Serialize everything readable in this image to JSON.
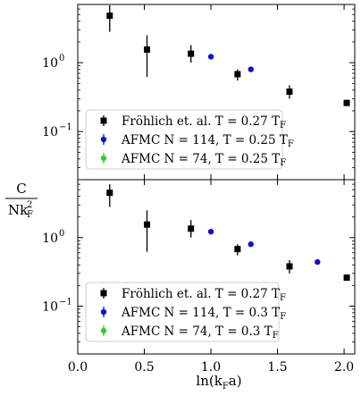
{
  "chart_data": [
    {
      "type": "scatter",
      "panel": "top",
      "yscale": "log",
      "xlim": [
        0.0,
        2.08
      ],
      "ylim": [
        0.02,
        7.0
      ],
      "yticks": [
        {
          "value": 0.1,
          "label": "10",
          "exp": "−1"
        },
        {
          "value": 1.0,
          "label": "10",
          "exp": "0"
        }
      ],
      "legend_loc": "lower-left",
      "series": [
        {
          "name": "Fröhlich et. al. T = 0.27 T_F",
          "legend": {
            "main": "Fröhlich et. al. T = 0.27 T",
            "sub": "F"
          },
          "color": "#000000",
          "marker": "square",
          "x": [
            0.24,
            0.52,
            0.85,
            1.2,
            1.59,
            2.02
          ],
          "y": [
            4.8,
            1.55,
            1.35,
            0.68,
            0.38,
            0.26
          ],
          "y_low": [
            2.8,
            0.62,
            1.0,
            0.55,
            0.3,
            0.24
          ],
          "y_high": [
            6.8,
            2.5,
            1.8,
            0.8,
            0.47,
            0.29
          ]
        },
        {
          "name": "AFMC N = 114, T = 0.25 T_F",
          "legend": {
            "main": "AFMC N = 114, T = 0.25 T",
            "sub": "F"
          },
          "color": "#1010d0",
          "marker": "circle",
          "x": [
            1.0,
            1.3
          ],
          "y": [
            1.22,
            0.8
          ],
          "y_low": [
            1.22,
            0.8
          ],
          "y_high": [
            1.22,
            0.8
          ]
        },
        {
          "name": "AFMC N = 74, T = 0.25 T_F",
          "legend": {
            "main": "AFMC N = 74, T = 0.25 T",
            "sub": "F"
          },
          "color": "#33cc33",
          "marker": "circle",
          "x": [],
          "y": [],
          "y_low": [],
          "y_high": []
        }
      ]
    },
    {
      "type": "scatter",
      "panel": "bottom",
      "yscale": "log",
      "xlim": [
        0.0,
        2.08
      ],
      "ylim": [
        0.02,
        7.0
      ],
      "xticks": [
        0.0,
        0.5,
        1.0,
        1.5,
        2.0
      ],
      "xtick_labels": [
        "0.0",
        "0.5",
        "1.0",
        "1.5",
        "2.0"
      ],
      "yticks": [
        {
          "value": 0.1,
          "label": "10",
          "exp": "−1"
        },
        {
          "value": 1.0,
          "label": "10",
          "exp": "0"
        }
      ],
      "legend_loc": "lower-left",
      "series": [
        {
          "name": "Fröhlich et. al. T = 0.27 T_F",
          "legend": {
            "main": "Fröhlich et. al. T = 0.27 T",
            "sub": "F"
          },
          "color": "#000000",
          "marker": "square",
          "x": [
            0.24,
            0.52,
            0.85,
            1.2,
            1.59,
            2.02
          ],
          "y": [
            4.5,
            1.55,
            1.35,
            0.68,
            0.38,
            0.26
          ],
          "y_low": [
            2.8,
            0.62,
            1.0,
            0.55,
            0.3,
            0.24
          ],
          "y_high": [
            6.0,
            2.5,
            1.8,
            0.8,
            0.47,
            0.29
          ]
        },
        {
          "name": "AFMC N = 114, T = 0.3 T_F",
          "legend": {
            "main": "AFMC N = 114, T = 0.3 T",
            "sub": "F"
          },
          "color": "#1010d0",
          "marker": "circle",
          "x": [
            1.0,
            1.3,
            1.8
          ],
          "y": [
            1.22,
            0.8,
            0.44
          ],
          "y_low": [
            1.22,
            0.8,
            0.44
          ],
          "y_high": [
            1.22,
            0.8,
            0.44
          ]
        },
        {
          "name": "AFMC N = 74, T = 0.3 T_F",
          "legend": {
            "main": "AFMC N = 74, T = 0.3 T",
            "sub": "F"
          },
          "color": "#33cc33",
          "marker": "circle",
          "x": [],
          "y": [],
          "y_low": [],
          "y_high": []
        }
      ]
    }
  ],
  "shared_labels": {
    "xlabel": {
      "main": "ln(k",
      "sub": "F",
      "tail": "a)"
    },
    "ylabel": {
      "numerator": "C",
      "denominator": "Nk",
      "sup": "2",
      "sub": "F"
    }
  }
}
